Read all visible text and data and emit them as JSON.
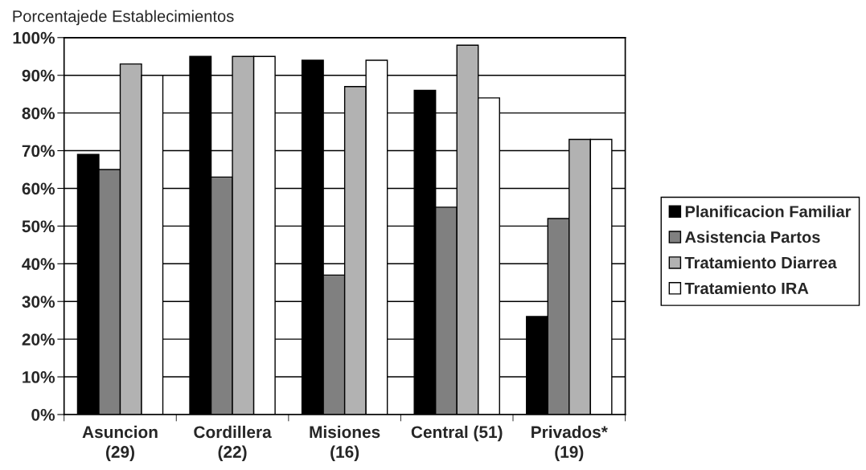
{
  "chart_data": {
    "type": "bar",
    "ylabel": "Porcentajede Establecimientos",
    "categories": [
      "Asuncion\n(29)",
      "Cordillera\n(22)",
      "Misiones\n(16)",
      "Central (51)",
      "Privados*\n(19)"
    ],
    "series": [
      {
        "name": "Planificacion Familiar",
        "color": "#000000",
        "values": [
          69,
          95,
          94,
          86,
          26
        ]
      },
      {
        "name": "Asistencia Partos",
        "color": "#808080",
        "values": [
          65,
          63,
          37,
          55,
          52
        ]
      },
      {
        "name": "Tratamiento Diarrea",
        "color": "#b2b2b2",
        "values": [
          93,
          95,
          87,
          98,
          73
        ]
      },
      {
        "name": "Tratamiento IRA",
        "color": "#ffffff",
        "values": [
          90,
          95,
          94,
          84,
          73
        ]
      }
    ],
    "ylim": [
      0,
      100
    ],
    "yticks": [
      {
        "value": 0,
        "label": "0%"
      },
      {
        "value": 10,
        "label": "10%"
      },
      {
        "value": 20,
        "label": "20%"
      },
      {
        "value": 30,
        "label": "30%"
      },
      {
        "value": 40,
        "label": "40%"
      },
      {
        "value": 50,
        "label": "50%"
      },
      {
        "value": 60,
        "label": "60%"
      },
      {
        "value": 70,
        "label": "70%"
      },
      {
        "value": 80,
        "label": "80%"
      },
      {
        "value": 90,
        "label": "90%"
      },
      {
        "value": 100,
        "label": "100%"
      }
    ],
    "grid": "y",
    "legend": "right"
  }
}
